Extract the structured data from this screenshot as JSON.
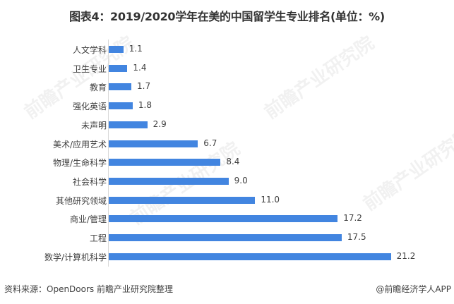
{
  "title": "图表4：2019/2020学年在美的中国留学生专业排名(单位：%)",
  "footer": {
    "source": "资料来源：OpenDoors 前瞻产业研究院整理",
    "credit": "@前瞻经济学人APP"
  },
  "watermark": "前瞻产业研究院",
  "colors": {
    "bar": "#4285e0",
    "axis": "#d9d9d9"
  },
  "chart_data": {
    "type": "bar",
    "orientation": "horizontal",
    "title": "图表4：2019/2020学年在美的中国留学生专业排名(单位：%)",
    "xlabel": "",
    "ylabel": "",
    "unit": "%",
    "categories": [
      "人文学科",
      "卫生专业",
      "教育",
      "强化英语",
      "未声明",
      "美术/应用艺术",
      "物理/生命科学",
      "社会科学",
      "其他研究领域",
      "商业/管理",
      "工程",
      "数学/计算机科学"
    ],
    "values": [
      1.1,
      1.4,
      1.7,
      1.8,
      2.9,
      6.7,
      8.4,
      9.0,
      11.0,
      17.2,
      17.5,
      21.2
    ],
    "value_labels": [
      "1.1",
      "1.4",
      "1.7",
      "1.8",
      "2.9",
      "6.7",
      "8.4",
      "9.0",
      "11.0",
      "17.2",
      "17.5",
      "21.2"
    ],
    "grid": false,
    "legend": null,
    "data_labels": true
  }
}
